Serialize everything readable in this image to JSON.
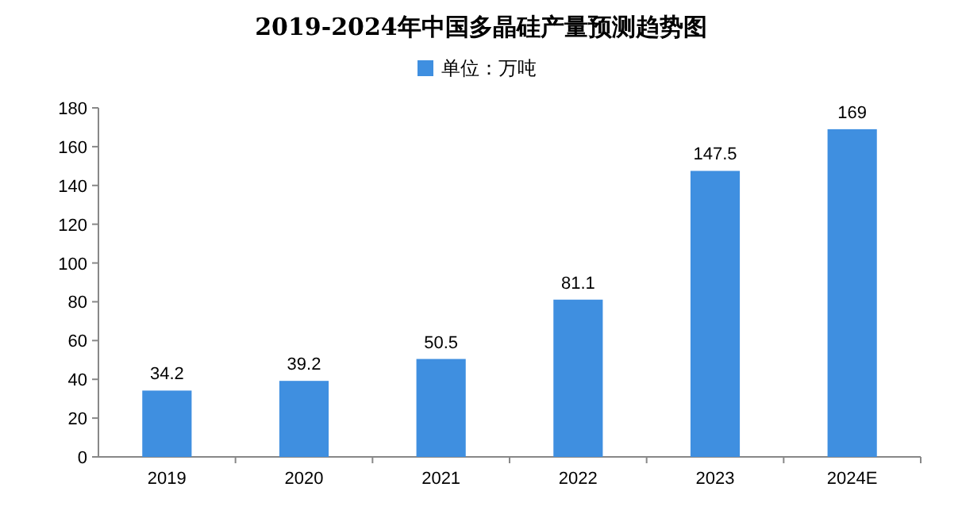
{
  "chart_data": {
    "type": "bar",
    "title": "2019-2024年中国多晶硅产量预测趋势图",
    "categories": [
      "2019",
      "2020",
      "2021",
      "2022",
      "2023",
      "2024E"
    ],
    "series": [
      {
        "name": "单位：万吨",
        "color": "#3f8fe0",
        "values": [
          34.2,
          39.2,
          50.5,
          81.1,
          147.5,
          169
        ]
      }
    ],
    "ylim": [
      0,
      180
    ],
    "yticks": [
      0,
      20,
      40,
      60,
      80,
      100,
      120,
      140,
      160,
      180
    ],
    "data_labels": true,
    "legend": "top",
    "grid": false
  }
}
